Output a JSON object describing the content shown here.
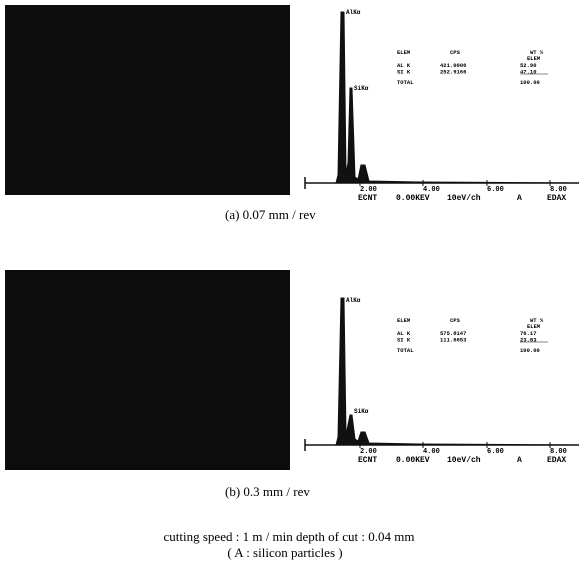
{
  "panels": [
    {
      "peaks": [
        "AlKα",
        "SiKα"
      ],
      "table": {
        "header": [
          "ELEM",
          "CPS",
          "WT %"
        ],
        "subheader": "ELEM",
        "rows": [
          [
            "AL K",
            "421.0006",
            "52.90"
          ],
          [
            "SI K",
            "252.9166",
            "47.10"
          ]
        ],
        "total": [
          "TOTAL",
          "100.00"
        ]
      },
      "axis_labels": [
        "2.00",
        "4.00",
        "6.00",
        "8.00"
      ],
      "footer": [
        "ECNT",
        "0.00KEV",
        "10eV/ch",
        "A",
        "EDAX"
      ],
      "caption": "(a) 0.07  mm / rev"
    },
    {
      "peaks": [
        "AlKα",
        "SiKα"
      ],
      "table": {
        "header": [
          "ELEM",
          "CPS",
          "WT %"
        ],
        "subheader": "ELEM",
        "rows": [
          [
            "AL K",
            "575.8147",
            "76.17"
          ],
          [
            "SI K",
            "111.6653",
            "23.83"
          ]
        ],
        "total": [
          "TOTAL",
          "100.00"
        ]
      },
      "axis_labels": [
        "2.00",
        "4.00",
        "6.00",
        "8.00"
      ],
      "footer": [
        "ECNT",
        "0.00KEV",
        "10eV/ch",
        "A",
        "EDAX"
      ],
      "caption": "(b) 0.3  mm / rev"
    }
  ],
  "conditions": "cutting speed  :  1 m / min   depth of cut  :  0.04 mm",
  "note": "( A :  silicon particles )"
}
